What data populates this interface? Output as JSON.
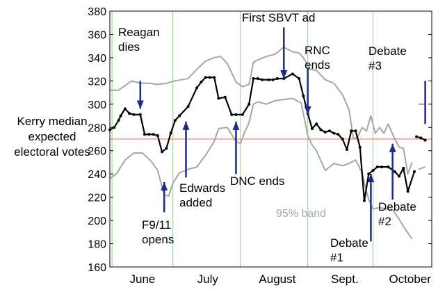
{
  "chart_data": {
    "type": "line",
    "title": "",
    "xlabel": "",
    "ylabel": [
      "Kerry median",
      "expected",
      "electoral votes"
    ],
    "ylim": [
      160,
      380
    ],
    "xlim": [
      0,
      148
    ],
    "yticks": [
      160,
      180,
      200,
      220,
      240,
      260,
      280,
      300,
      320,
      340,
      360,
      380
    ],
    "month_labels": [
      {
        "label": "June",
        "x": 15
      },
      {
        "label": "July",
        "x": 45
      },
      {
        "label": "August",
        "x": 77
      },
      {
        "label": "Sept.",
        "x": 108
      },
      {
        "label": "October",
        "x": 138
      }
    ],
    "green_vlines": [
      1,
      29,
      60,
      91,
      121
    ],
    "reference_line": {
      "y": 270,
      "color": "#f08a6a"
    },
    "colors": {
      "median": "#000000",
      "band": "#a6a6a6",
      "grid": "#8fd08f",
      "arrow": "#1c2a8c"
    },
    "series": [
      {
        "role": "median",
        "x": [
          0,
          2,
          4,
          5,
          7,
          9,
          11,
          14,
          16,
          18,
          20,
          22,
          24,
          26,
          28,
          30,
          32,
          36,
          40,
          42,
          44,
          46,
          48,
          50,
          53,
          56,
          58,
          61,
          64,
          66,
          68,
          70,
          73,
          75,
          77,
          80,
          84,
          87,
          89,
          91,
          93,
          95,
          97,
          99,
          101,
          103,
          105,
          107,
          109,
          111,
          113,
          115,
          117,
          119,
          121,
          123,
          125,
          128,
          131,
          133,
          135,
          137,
          140
        ],
        "y": [
          278,
          280,
          286,
          290,
          296,
          292,
          291,
          291,
          274,
          274,
          274,
          273,
          259,
          262,
          275,
          286,
          290,
          298,
          314,
          319,
          323,
          323,
          323,
          305,
          306,
          291,
          291,
          291,
          300,
          322,
          322,
          321,
          321,
          321,
          322,
          322,
          326,
          322,
          307,
          292,
          279,
          283,
          278,
          276,
          277,
          275,
          274,
          270,
          261,
          277,
          277,
          263,
          217,
          240,
          243,
          246,
          246,
          246,
          242,
          238,
          245,
          225,
          242
        ]
      },
      {
        "role": "median",
        "x": [
          141,
          143,
          145
        ],
        "y": [
          272,
          271,
          269
        ]
      },
      {
        "role": "band-upper",
        "name": "95% band",
        "x": [
          0,
          4,
          7,
          10,
          14,
          18,
          22,
          26,
          30,
          33,
          36,
          40,
          44,
          48,
          51,
          54,
          58,
          61,
          64,
          66,
          68,
          72,
          76,
          80,
          84,
          87,
          89,
          92,
          95,
          99,
          103,
          107,
          110,
          112,
          114,
          116,
          118,
          120,
          122,
          124,
          126,
          128,
          131,
          133,
          135,
          137,
          139
        ],
        "y": [
          312,
          312,
          316,
          320,
          318,
          318,
          317,
          318,
          320,
          321,
          322,
          330,
          337,
          340,
          341,
          335,
          319,
          315,
          317,
          336,
          338,
          341,
          343,
          349,
          345,
          344,
          340,
          330,
          329,
          321,
          318,
          308,
          295,
          270,
          272,
          280,
          277,
          290,
          275,
          280,
          275,
          283,
          270,
          263,
          262,
          240,
          250
        ]
      },
      {
        "role": "band-upper",
        "x": [
          142,
          145
        ],
        "y": [
          300,
          300
        ]
      },
      {
        "role": "band-lower",
        "x": [
          0,
          3,
          7,
          11,
          15,
          19,
          22,
          25,
          27,
          29,
          32,
          36,
          40,
          44,
          48,
          50,
          54,
          58,
          60,
          62,
          64,
          66,
          68,
          72,
          76,
          80,
          84,
          88,
          91,
          93,
          95,
          99,
          103,
          107,
          110,
          113,
          116,
          117,
          119,
          121,
          124,
          127,
          130,
          133,
          136,
          139
        ],
        "y": [
          236,
          240,
          252,
          258,
          258,
          251,
          243,
          222,
          221,
          232,
          241,
          244,
          246,
          256,
          268,
          279,
          280,
          268,
          266,
          276,
          284,
          300,
          302,
          300,
          303,
          304,
          305,
          301,
          273,
          265,
          260,
          243,
          249,
          247,
          249,
          252,
          241,
          232,
          218,
          210,
          211,
          210,
          209,
          201,
          192,
          184
        ]
      },
      {
        "role": "band-lower",
        "x": [
          142,
          145
        ],
        "y": [
          244,
          246
        ]
      }
    ],
    "annotations": [
      {
        "text": [
          "Reagan",
          "dies"
        ],
        "arrow_from": [
          14,
          320
        ],
        "arrow_to": [
          14,
          296
        ]
      },
      {
        "text": [
          "F9/11",
          "opens"
        ],
        "arrow_from": [
          25,
          207
        ],
        "arrow_to": [
          25,
          233
        ]
      },
      {
        "text": [
          "Edwards",
          "added"
        ],
        "arrow_from": [
          35,
          237
        ],
        "arrow_to": [
          35,
          285
        ]
      },
      {
        "text": [
          "DNC ends"
        ],
        "arrow_from": [
          58,
          240
        ],
        "arrow_to": [
          58,
          285
        ]
      },
      {
        "text": [
          "First SBVT ad"
        ],
        "arrow_from": [
          80,
          366
        ],
        "arrow_to": [
          80,
          322
        ]
      },
      {
        "text": [
          "RNC",
          "ends"
        ],
        "arrow_from": [
          91,
          331
        ],
        "arrow_to": [
          91,
          291
        ]
      },
      {
        "text": [
          "Debate",
          "#1"
        ],
        "arrow_from": [
          120,
          182
        ],
        "arrow_to": [
          120,
          240
        ]
      },
      {
        "text": [
          "Debate",
          "#2"
        ],
        "arrow_from": [
          130,
          218
        ],
        "arrow_to": [
          130,
          266
        ]
      },
      {
        "text": [
          "Debate",
          "#3"
        ],
        "arrow_from": [
          145,
          320
        ],
        "arrow_to": [
          145,
          283
        ]
      }
    ],
    "band_label": "95% band"
  }
}
